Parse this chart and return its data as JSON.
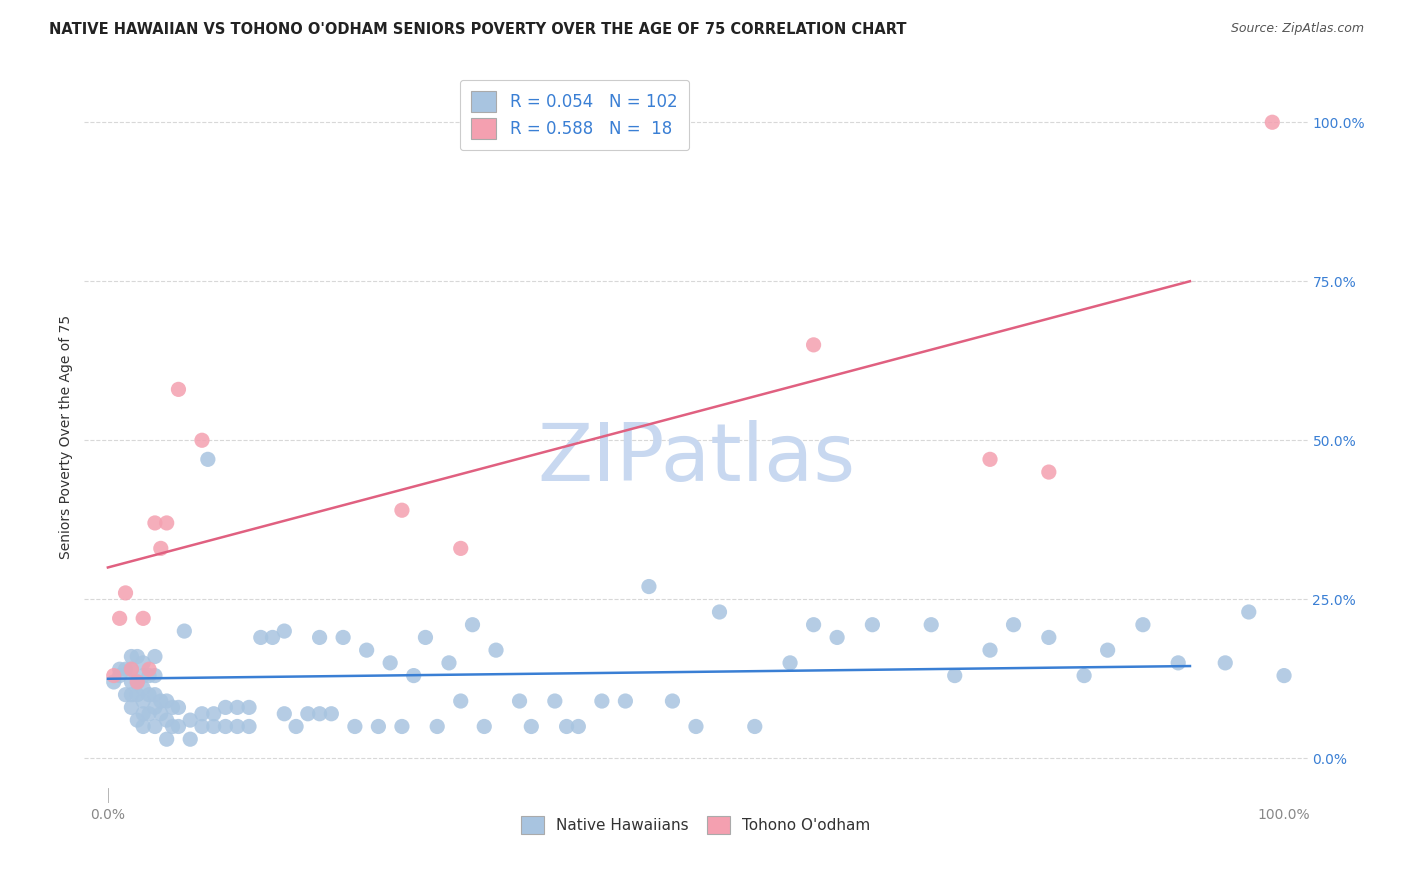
{
  "title": "NATIVE HAWAIIAN VS TOHONO O'ODHAM SENIORS POVERTY OVER THE AGE OF 75 CORRELATION CHART",
  "source": "Source: ZipAtlas.com",
  "ylabel": "Seniors Poverty Over the Age of 75",
  "xlim": [
    -0.02,
    1.02
  ],
  "ylim": [
    -0.07,
    1.08
  ],
  "x_ticks": [
    0.0,
    1.0
  ],
  "x_tick_labels": [
    "0.0%",
    "100.0%"
  ],
  "y_ticks": [
    0.0,
    0.25,
    0.5,
    0.75,
    1.0
  ],
  "y_tick_labels": [
    "0.0%",
    "25.0%",
    "50.0%",
    "75.0%",
    "100.0%"
  ],
  "nh_R": 0.054,
  "nh_N": 102,
  "to_R": 0.588,
  "to_N": 18,
  "nh_color": "#a8c4e0",
  "to_color": "#f4a0b0",
  "nh_line_color": "#3a7fd4",
  "to_line_color": "#e06080",
  "legend_text_color": "#3a7fd4",
  "ytick_color": "#3a7fd4",
  "xtick_color": "#888888",
  "watermark": "ZIPatlas",
  "watermark_color": "#c8d8f0",
  "background_color": "#ffffff",
  "grid_color": "#d8d8d8",
  "nh_line_start_y": 0.125,
  "nh_line_end_y": 0.145,
  "to_line_start_y": 0.3,
  "to_line_end_y": 0.75,
  "nh_x": [
    0.005,
    0.01,
    0.01,
    0.015,
    0.015,
    0.02,
    0.02,
    0.02,
    0.02,
    0.02,
    0.025,
    0.025,
    0.025,
    0.025,
    0.03,
    0.03,
    0.03,
    0.03,
    0.03,
    0.03,
    0.035,
    0.035,
    0.035,
    0.04,
    0.04,
    0.04,
    0.04,
    0.04,
    0.045,
    0.045,
    0.05,
    0.05,
    0.05,
    0.055,
    0.055,
    0.06,
    0.06,
    0.065,
    0.07,
    0.07,
    0.08,
    0.08,
    0.085,
    0.09,
    0.09,
    0.1,
    0.1,
    0.11,
    0.11,
    0.12,
    0.12,
    0.13,
    0.14,
    0.15,
    0.15,
    0.16,
    0.17,
    0.18,
    0.18,
    0.19,
    0.2,
    0.21,
    0.22,
    0.23,
    0.24,
    0.25,
    0.26,
    0.27,
    0.28,
    0.29,
    0.3,
    0.31,
    0.32,
    0.33,
    0.35,
    0.36,
    0.38,
    0.39,
    0.4,
    0.42,
    0.44,
    0.46,
    0.48,
    0.5,
    0.52,
    0.55,
    0.58,
    0.6,
    0.62,
    0.65,
    0.7,
    0.72,
    0.75,
    0.77,
    0.8,
    0.83,
    0.85,
    0.88,
    0.91,
    0.95,
    0.97,
    1.0
  ],
  "nh_y": [
    0.12,
    0.13,
    0.14,
    0.1,
    0.14,
    0.08,
    0.1,
    0.12,
    0.14,
    0.16,
    0.06,
    0.1,
    0.12,
    0.16,
    0.05,
    0.07,
    0.09,
    0.11,
    0.13,
    0.15,
    0.07,
    0.1,
    0.13,
    0.05,
    0.08,
    0.1,
    0.13,
    0.16,
    0.07,
    0.09,
    0.03,
    0.06,
    0.09,
    0.05,
    0.08,
    0.05,
    0.08,
    0.2,
    0.03,
    0.06,
    0.05,
    0.07,
    0.47,
    0.05,
    0.07,
    0.05,
    0.08,
    0.05,
    0.08,
    0.05,
    0.08,
    0.19,
    0.19,
    0.07,
    0.2,
    0.05,
    0.07,
    0.07,
    0.19,
    0.07,
    0.19,
    0.05,
    0.17,
    0.05,
    0.15,
    0.05,
    0.13,
    0.19,
    0.05,
    0.15,
    0.09,
    0.21,
    0.05,
    0.17,
    0.09,
    0.05,
    0.09,
    0.05,
    0.05,
    0.09,
    0.09,
    0.27,
    0.09,
    0.05,
    0.23,
    0.05,
    0.15,
    0.21,
    0.19,
    0.21,
    0.21,
    0.13,
    0.17,
    0.21,
    0.19,
    0.13,
    0.17,
    0.21,
    0.15,
    0.15,
    0.23,
    0.13
  ],
  "to_x": [
    0.005,
    0.01,
    0.015,
    0.02,
    0.025,
    0.03,
    0.035,
    0.04,
    0.045,
    0.05,
    0.06,
    0.08,
    0.25,
    0.3,
    0.6,
    0.75,
    0.8,
    0.99
  ],
  "to_y": [
    0.13,
    0.22,
    0.26,
    0.14,
    0.12,
    0.22,
    0.14,
    0.37,
    0.33,
    0.37,
    0.58,
    0.5,
    0.39,
    0.33,
    0.65,
    0.47,
    0.45,
    1.0
  ]
}
